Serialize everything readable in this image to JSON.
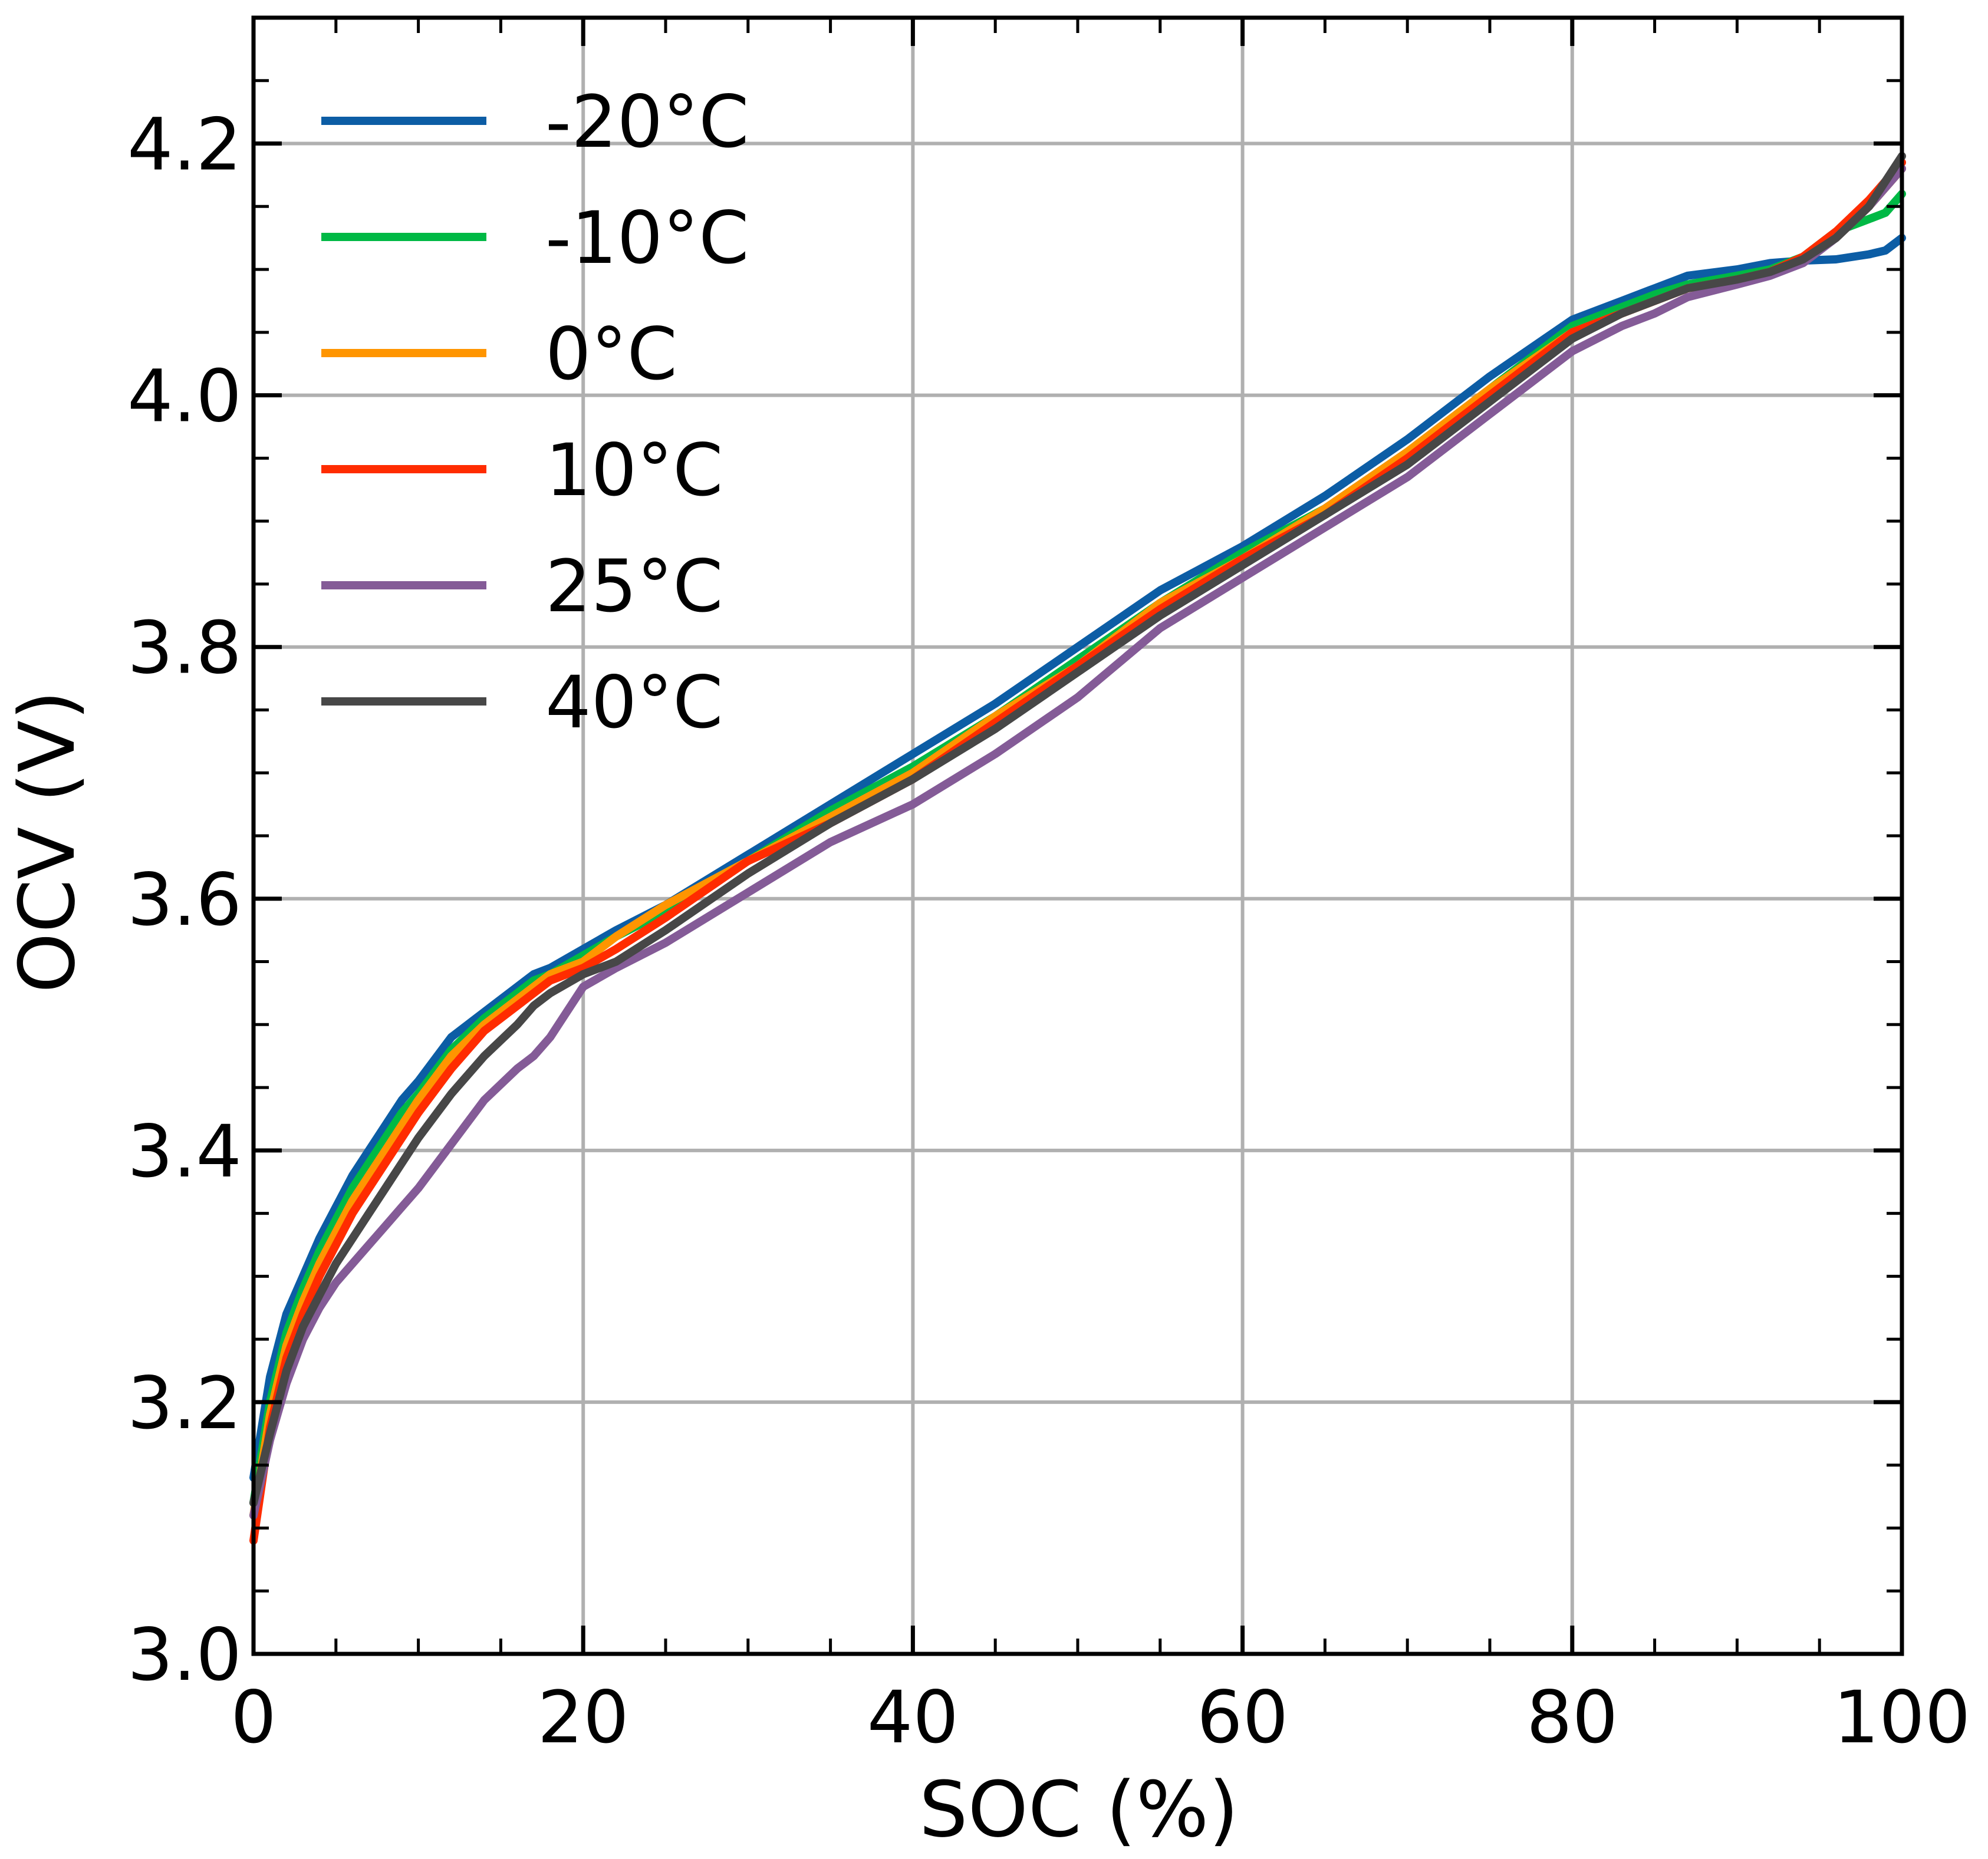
{
  "chart_data": {
    "type": "line",
    "title": "",
    "xlabel": "SOC (%)",
    "ylabel": "OCV (V)",
    "xlim": [
      0,
      100
    ],
    "ylim": [
      3.0,
      4.3
    ],
    "xticks": [
      0,
      20,
      40,
      60,
      80,
      100
    ],
    "xtick_labels": [
      "0",
      "20",
      "40",
      "60",
      "80",
      "100"
    ],
    "yticks": [
      3.0,
      3.2,
      3.4,
      3.6,
      3.8,
      4.0,
      4.2
    ],
    "ytick_labels": [
      "3.0",
      "3.2",
      "3.4",
      "3.6",
      "3.8",
      "4.0",
      "4.2"
    ],
    "grid": true,
    "legend_position": "top-left",
    "x": [
      0,
      1,
      2,
      3,
      4,
      5,
      6,
      7,
      8,
      9,
      10,
      12,
      14,
      16,
      17,
      18,
      20,
      22,
      25,
      30,
      35,
      40,
      45,
      50,
      55,
      60,
      65,
      70,
      75,
      80,
      83,
      85,
      87,
      90,
      92,
      94,
      96,
      98,
      99,
      100
    ],
    "series": [
      {
        "name": "-20°C",
        "color": "#0c5da5",
        "values": [
          3.14,
          3.22,
          3.27,
          3.3,
          3.33,
          3.355,
          3.38,
          3.4,
          3.42,
          3.44,
          3.455,
          3.49,
          3.51,
          3.53,
          3.54,
          3.545,
          3.56,
          3.575,
          3.595,
          3.635,
          3.675,
          3.715,
          3.755,
          3.8,
          3.845,
          3.88,
          3.92,
          3.965,
          4.015,
          4.06,
          4.075,
          4.085,
          4.095,
          4.1,
          4.105,
          4.107,
          4.108,
          4.112,
          4.115,
          4.125
        ]
      },
      {
        "name": "-10°C",
        "color": "#00b945",
        "values": [
          3.12,
          3.2,
          3.255,
          3.29,
          3.32,
          3.345,
          3.37,
          3.39,
          3.41,
          3.43,
          3.445,
          3.48,
          3.505,
          3.525,
          3.535,
          3.54,
          3.555,
          3.57,
          3.59,
          3.63,
          3.67,
          3.705,
          3.745,
          3.79,
          3.835,
          3.875,
          3.91,
          3.955,
          4.005,
          4.055,
          4.07,
          4.08,
          4.088,
          4.095,
          4.1,
          4.11,
          4.13,
          4.14,
          4.145,
          4.16
        ]
      },
      {
        "name": "0°C",
        "color": "#ff9500",
        "values": [
          3.11,
          3.19,
          3.245,
          3.28,
          3.31,
          3.335,
          3.36,
          3.38,
          3.4,
          3.42,
          3.44,
          3.475,
          3.5,
          3.52,
          3.53,
          3.54,
          3.55,
          3.57,
          3.595,
          3.63,
          3.665,
          3.7,
          3.745,
          3.785,
          3.835,
          3.87,
          3.91,
          3.955,
          4.005,
          4.05,
          4.065,
          4.075,
          4.085,
          4.092,
          4.098,
          4.11,
          4.125,
          4.15,
          4.165,
          4.18
        ]
      },
      {
        "name": "10°C",
        "color": "#ff2c00",
        "values": [
          3.09,
          3.18,
          3.235,
          3.27,
          3.3,
          3.325,
          3.35,
          3.37,
          3.39,
          3.41,
          3.43,
          3.465,
          3.495,
          3.515,
          3.525,
          3.535,
          3.545,
          3.56,
          3.585,
          3.63,
          3.66,
          3.695,
          3.74,
          3.785,
          3.83,
          3.87,
          3.905,
          3.95,
          4.0,
          4.05,
          4.065,
          4.075,
          4.085,
          4.092,
          4.098,
          4.11,
          4.13,
          4.155,
          4.17,
          4.185
        ]
      },
      {
        "name": "25°C",
        "color": "#845b97",
        "values": [
          3.11,
          3.17,
          3.215,
          3.25,
          3.275,
          3.295,
          3.31,
          3.325,
          3.34,
          3.355,
          3.37,
          3.405,
          3.44,
          3.465,
          3.475,
          3.49,
          3.53,
          3.545,
          3.565,
          3.605,
          3.645,
          3.675,
          3.715,
          3.76,
          3.815,
          3.855,
          3.895,
          3.935,
          3.985,
          4.035,
          4.055,
          4.065,
          4.078,
          4.088,
          4.095,
          4.105,
          4.125,
          4.15,
          4.165,
          4.18
        ]
      },
      {
        "name": "40°C",
        "color": "#474747",
        "values": [
          3.12,
          3.175,
          3.225,
          3.26,
          3.285,
          3.31,
          3.33,
          3.35,
          3.37,
          3.39,
          3.41,
          3.445,
          3.475,
          3.5,
          3.515,
          3.525,
          3.54,
          3.55,
          3.575,
          3.62,
          3.66,
          3.695,
          3.735,
          3.78,
          3.825,
          3.865,
          3.905,
          3.945,
          3.995,
          4.045,
          4.065,
          4.075,
          4.085,
          4.092,
          4.098,
          4.108,
          4.125,
          4.15,
          4.17,
          4.19
        ]
      }
    ]
  }
}
